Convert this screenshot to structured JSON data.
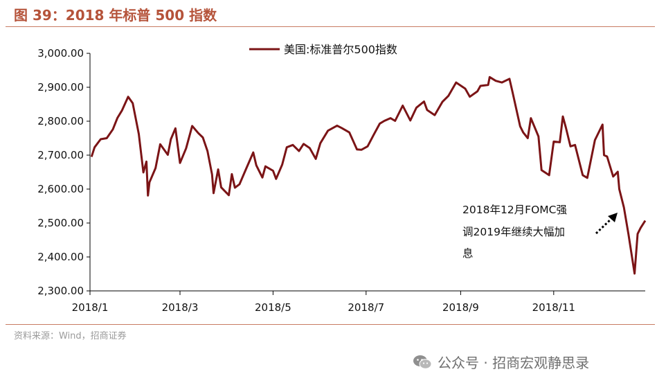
{
  "header": {
    "figure_title": "图 39：2018 年标普 500 指数"
  },
  "footer": {
    "source": "资料来源：Wind，招商证券",
    "watermark": "公众号 · 招商宏观静思录"
  },
  "colors": {
    "series_line": "#7b1416",
    "title_text": "#b5533a",
    "rule": "#c87a62"
  },
  "icons": {
    "watermark_icon": "wechat-icon"
  },
  "chart_data": {
    "type": "line",
    "title": "",
    "xlabel": "",
    "ylabel": "",
    "ylim": [
      2300,
      3000
    ],
    "yticks": [
      3000,
      2900,
      2800,
      2700,
      2600,
      2500,
      2400,
      2300
    ],
    "ytick_labels": [
      "3,000.00",
      "2,900.00",
      "2,800.00",
      "2,700.00",
      "2,600.00",
      "2,500.00",
      "2,400.00",
      "2,300.00"
    ],
    "xlim": [
      "2018-01-01",
      "2018-12-31"
    ],
    "xticks": [
      "2018-01-01",
      "2018-03-01",
      "2018-05-01",
      "2018-07-01",
      "2018-09-01",
      "2018-11-01"
    ],
    "xtick_labels": [
      "2018/1",
      "2018/3",
      "2018/5",
      "2018/7",
      "2018/9",
      "2018/11"
    ],
    "legend": {
      "position": "top-center"
    },
    "grid": false,
    "series": [
      {
        "name": "美国:标准普尔500指数",
        "color": "#7b1416",
        "points": [
          [
            "2018-01-02",
            2695
          ],
          [
            "2018-01-04",
            2723
          ],
          [
            "2018-01-08",
            2747
          ],
          [
            "2018-01-12",
            2750
          ],
          [
            "2018-01-16",
            2776
          ],
          [
            "2018-01-19",
            2810
          ],
          [
            "2018-01-22",
            2832
          ],
          [
            "2018-01-26",
            2872
          ],
          [
            "2018-01-29",
            2853
          ],
          [
            "2018-02-02",
            2762
          ],
          [
            "2018-02-05",
            2649
          ],
          [
            "2018-02-07",
            2681
          ],
          [
            "2018-02-08",
            2581
          ],
          [
            "2018-02-09",
            2620
          ],
          [
            "2018-02-13",
            2662
          ],
          [
            "2018-02-16",
            2732
          ],
          [
            "2018-02-21",
            2701
          ],
          [
            "2018-02-23",
            2747
          ],
          [
            "2018-02-26",
            2779
          ],
          [
            "2018-03-01",
            2677
          ],
          [
            "2018-03-05",
            2720
          ],
          [
            "2018-03-09",
            2786
          ],
          [
            "2018-03-13",
            2765
          ],
          [
            "2018-03-16",
            2752
          ],
          [
            "2018-03-19",
            2712
          ],
          [
            "2018-03-22",
            2643
          ],
          [
            "2018-03-23",
            2588
          ],
          [
            "2018-03-26",
            2658
          ],
          [
            "2018-03-28",
            2605
          ],
          [
            "2018-04-02",
            2582
          ],
          [
            "2018-04-04",
            2644
          ],
          [
            "2018-04-06",
            2604
          ],
          [
            "2018-04-09",
            2614
          ],
          [
            "2018-04-13",
            2656
          ],
          [
            "2018-04-18",
            2708
          ],
          [
            "2018-04-20",
            2670
          ],
          [
            "2018-04-24",
            2634
          ],
          [
            "2018-04-26",
            2667
          ],
          [
            "2018-05-01",
            2654
          ],
          [
            "2018-05-03",
            2630
          ],
          [
            "2018-05-07",
            2672
          ],
          [
            "2018-05-10",
            2723
          ],
          [
            "2018-05-14",
            2730
          ],
          [
            "2018-05-18",
            2712
          ],
          [
            "2018-05-21",
            2733
          ],
          [
            "2018-05-25",
            2721
          ],
          [
            "2018-05-29",
            2689
          ],
          [
            "2018-06-01",
            2735
          ],
          [
            "2018-06-06",
            2772
          ],
          [
            "2018-06-12",
            2787
          ],
          [
            "2018-06-15",
            2780
          ],
          [
            "2018-06-20",
            2767
          ],
          [
            "2018-06-25",
            2717
          ],
          [
            "2018-06-28",
            2716
          ],
          [
            "2018-07-02",
            2726
          ],
          [
            "2018-07-06",
            2760
          ],
          [
            "2018-07-10",
            2793
          ],
          [
            "2018-07-13",
            2801
          ],
          [
            "2018-07-17",
            2809
          ],
          [
            "2018-07-20",
            2801
          ],
          [
            "2018-07-25",
            2846
          ],
          [
            "2018-07-30",
            2802
          ],
          [
            "2018-08-03",
            2840
          ],
          [
            "2018-08-08",
            2858
          ],
          [
            "2018-08-10",
            2833
          ],
          [
            "2018-08-15",
            2818
          ],
          [
            "2018-08-20",
            2857
          ],
          [
            "2018-08-24",
            2875
          ],
          [
            "2018-08-29",
            2914
          ],
          [
            "2018-09-04",
            2896
          ],
          [
            "2018-09-07",
            2872
          ],
          [
            "2018-09-12",
            2888
          ],
          [
            "2018-09-14",
            2904
          ],
          [
            "2018-09-19",
            2907
          ],
          [
            "2018-09-20",
            2930
          ],
          [
            "2018-09-24",
            2919
          ],
          [
            "2018-09-28",
            2914
          ],
          [
            "2018-10-03",
            2925
          ],
          [
            "2018-10-05",
            2886
          ],
          [
            "2018-10-10",
            2785
          ],
          [
            "2018-10-12",
            2767
          ],
          [
            "2018-10-15",
            2750
          ],
          [
            "2018-10-17",
            2809
          ],
          [
            "2018-10-22",
            2755
          ],
          [
            "2018-10-24",
            2656
          ],
          [
            "2018-10-29",
            2641
          ],
          [
            "2018-11-01",
            2740
          ],
          [
            "2018-11-05",
            2738
          ],
          [
            "2018-11-07",
            2814
          ],
          [
            "2018-11-09",
            2781
          ],
          [
            "2018-11-12",
            2726
          ],
          [
            "2018-11-15",
            2730
          ],
          [
            "2018-11-20",
            2641
          ],
          [
            "2018-11-23",
            2633
          ],
          [
            "2018-11-28",
            2744
          ],
          [
            "2018-12-03",
            2790
          ],
          [
            "2018-12-04",
            2700
          ],
          [
            "2018-12-06",
            2696
          ],
          [
            "2018-12-10",
            2637
          ],
          [
            "2018-12-13",
            2651
          ],
          [
            "2018-12-14",
            2600
          ],
          [
            "2018-12-17",
            2546
          ],
          [
            "2018-12-20",
            2467
          ],
          [
            "2018-12-24",
            2351
          ],
          [
            "2018-12-26",
            2468
          ],
          [
            "2018-12-28",
            2486
          ],
          [
            "2018-12-31",
            2507
          ]
        ]
      }
    ],
    "annotations": [
      {
        "text_lines": [
          "2018年12月FOMC强",
          "调2019年继续大幅加",
          "息"
        ],
        "arrow": true
      }
    ]
  }
}
